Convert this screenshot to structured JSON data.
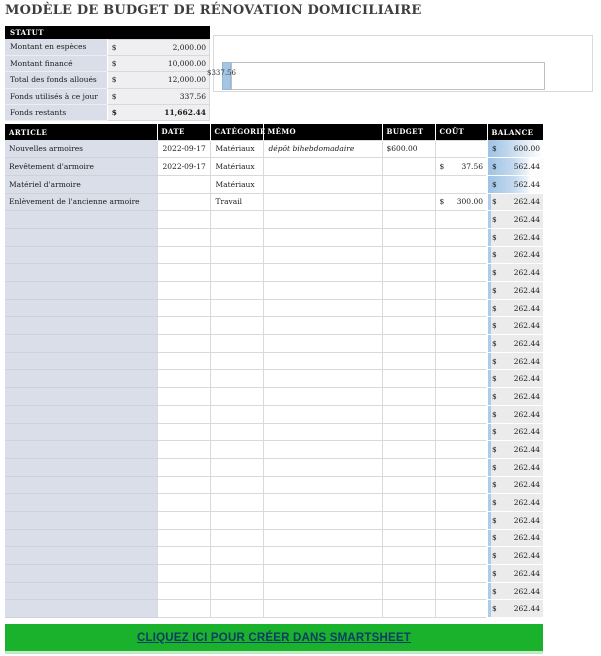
{
  "page": {
    "title": "MODÈLE DE BUDGET DE RÉNOVATION DOMICILIAIRE"
  },
  "colors": {
    "header_bg": "#000000",
    "article_column_bg": "#dadee9",
    "statut_value_bg": "#efeff1",
    "balance_bar_blue": "#a3c6e5",
    "balance_row_gray": "#ebebeb",
    "banner_green": "#1ab22c",
    "banner_text_navy": "#0d3c64",
    "grid_border": "#d9d9d9"
  },
  "statut": {
    "header": "STATUT",
    "rows": [
      {
        "label": "Montant en espèces",
        "currency": "$",
        "value": "2,000.00",
        "bold": false
      },
      {
        "label": "Montant financé",
        "currency": "$",
        "value": "10,000.00",
        "bold": false
      },
      {
        "label": "Total des fonds alloués",
        "currency": "$",
        "value": "12,000.00",
        "bold": false
      },
      {
        "label": "Fonds utilisés à ce jour",
        "currency": "$",
        "value": "337.56",
        "bold": false
      },
      {
        "label": "Fonds restants",
        "currency": "$",
        "value": "11,662.44",
        "bold": true
      }
    ]
  },
  "chart": {
    "bar_label": "$337.56"
  },
  "chart_data": {
    "type": "bar",
    "orientation": "horizontal",
    "title": "",
    "series": [
      {
        "name": "Fonds utilisés à ce jour",
        "value": 337.56,
        "color": "#a3c6e5"
      },
      {
        "name": "Fonds restants",
        "value": 11662.44,
        "color": "#ffffff"
      }
    ],
    "total": 12000,
    "data_label": "$337.56",
    "xlim": [
      0,
      12000
    ],
    "grid": false,
    "legend": false
  },
  "main_table": {
    "currency_symbol": "$",
    "columns": [
      {
        "label": "ARTICLE"
      },
      {
        "label": "DATE"
      },
      {
        "label": "CATÉGORIE"
      },
      {
        "label": "MÉMO"
      },
      {
        "label": "BUDGET"
      },
      {
        "label": "COÛT"
      },
      {
        "label": "BALANCE"
      }
    ],
    "rows": [
      {
        "article": "Nouvelles armoires",
        "date": "2022-09-17",
        "categorie": "Matériaux",
        "memo": "dépôt bihebdomadaire",
        "budget": "$600.00",
        "cout": "",
        "balance": "600.00",
        "bar": "full"
      },
      {
        "article": "Revêtement d'armoire",
        "date": "2022-09-17",
        "categorie": "Matériaux",
        "memo": "",
        "budget": "",
        "cout": "37.56",
        "balance": "562.44",
        "bar": "partial"
      },
      {
        "article": "Matériel d'armoire",
        "date": "",
        "categorie": "Matériaux",
        "memo": "",
        "budget": "",
        "cout": "",
        "balance": "562.44",
        "bar": "partial"
      },
      {
        "article": "Enlèvement de l'ancienne armoire",
        "date": "",
        "categorie": "Travail",
        "memo": "",
        "budget": "",
        "cout": "300.00",
        "balance": "262.44",
        "bar": "min"
      },
      {
        "article": "",
        "date": "",
        "categorie": "",
        "memo": "",
        "budget": "",
        "cout": "",
        "balance": "262.44",
        "bar": "min"
      },
      {
        "article": "",
        "date": "",
        "categorie": "",
        "memo": "",
        "budget": "",
        "cout": "",
        "balance": "262.44",
        "bar": "min"
      },
      {
        "article": "",
        "date": "",
        "categorie": "",
        "memo": "",
        "budget": "",
        "cout": "",
        "balance": "262.44",
        "bar": "min"
      },
      {
        "article": "",
        "date": "",
        "categorie": "",
        "memo": "",
        "budget": "",
        "cout": "",
        "balance": "262.44",
        "bar": "min"
      },
      {
        "article": "",
        "date": "",
        "categorie": "",
        "memo": "",
        "budget": "",
        "cout": "",
        "balance": "262.44",
        "bar": "min"
      },
      {
        "article": "",
        "date": "",
        "categorie": "",
        "memo": "",
        "budget": "",
        "cout": "",
        "balance": "262.44",
        "bar": "min"
      },
      {
        "article": "",
        "date": "",
        "categorie": "",
        "memo": "",
        "budget": "",
        "cout": "",
        "balance": "262.44",
        "bar": "min"
      },
      {
        "article": "",
        "date": "",
        "categorie": "",
        "memo": "",
        "budget": "",
        "cout": "",
        "balance": "262.44",
        "bar": "min"
      },
      {
        "article": "",
        "date": "",
        "categorie": "",
        "memo": "",
        "budget": "",
        "cout": "",
        "balance": "262.44",
        "bar": "min"
      },
      {
        "article": "",
        "date": "",
        "categorie": "",
        "memo": "",
        "budget": "",
        "cout": "",
        "balance": "262.44",
        "bar": "min"
      },
      {
        "article": "",
        "date": "",
        "categorie": "",
        "memo": "",
        "budget": "",
        "cout": "",
        "balance": "262.44",
        "bar": "min"
      },
      {
        "article": "",
        "date": "",
        "categorie": "",
        "memo": "",
        "budget": "",
        "cout": "",
        "balance": "262.44",
        "bar": "min"
      },
      {
        "article": "",
        "date": "",
        "categorie": "",
        "memo": "",
        "budget": "",
        "cout": "",
        "balance": "262.44",
        "bar": "min"
      },
      {
        "article": "",
        "date": "",
        "categorie": "",
        "memo": "",
        "budget": "",
        "cout": "",
        "balance": "262.44",
        "bar": "min"
      },
      {
        "article": "",
        "date": "",
        "categorie": "",
        "memo": "",
        "budget": "",
        "cout": "",
        "balance": "262.44",
        "bar": "min"
      },
      {
        "article": "",
        "date": "",
        "categorie": "",
        "memo": "",
        "budget": "",
        "cout": "",
        "balance": "262.44",
        "bar": "min"
      },
      {
        "article": "",
        "date": "",
        "categorie": "",
        "memo": "",
        "budget": "",
        "cout": "",
        "balance": "262.44",
        "bar": "min"
      },
      {
        "article": "",
        "date": "",
        "categorie": "",
        "memo": "",
        "budget": "",
        "cout": "",
        "balance": "262.44",
        "bar": "min"
      },
      {
        "article": "",
        "date": "",
        "categorie": "",
        "memo": "",
        "budget": "",
        "cout": "",
        "balance": "262.44",
        "bar": "min"
      },
      {
        "article": "",
        "date": "",
        "categorie": "",
        "memo": "",
        "budget": "",
        "cout": "",
        "balance": "262.44",
        "bar": "min"
      },
      {
        "article": "",
        "date": "",
        "categorie": "",
        "memo": "",
        "budget": "",
        "cout": "",
        "balance": "262.44",
        "bar": "min"
      },
      {
        "article": "",
        "date": "",
        "categorie": "",
        "memo": "",
        "budget": "",
        "cout": "",
        "balance": "262.44",
        "bar": "min"
      },
      {
        "article": "",
        "date": "",
        "categorie": "",
        "memo": "",
        "budget": "",
        "cout": "",
        "balance": "262.44",
        "bar": "min"
      }
    ]
  },
  "footer": {
    "cta_label": "CLIQUEZ ICI POUR CRÉER DANS SMARTSHEET"
  }
}
